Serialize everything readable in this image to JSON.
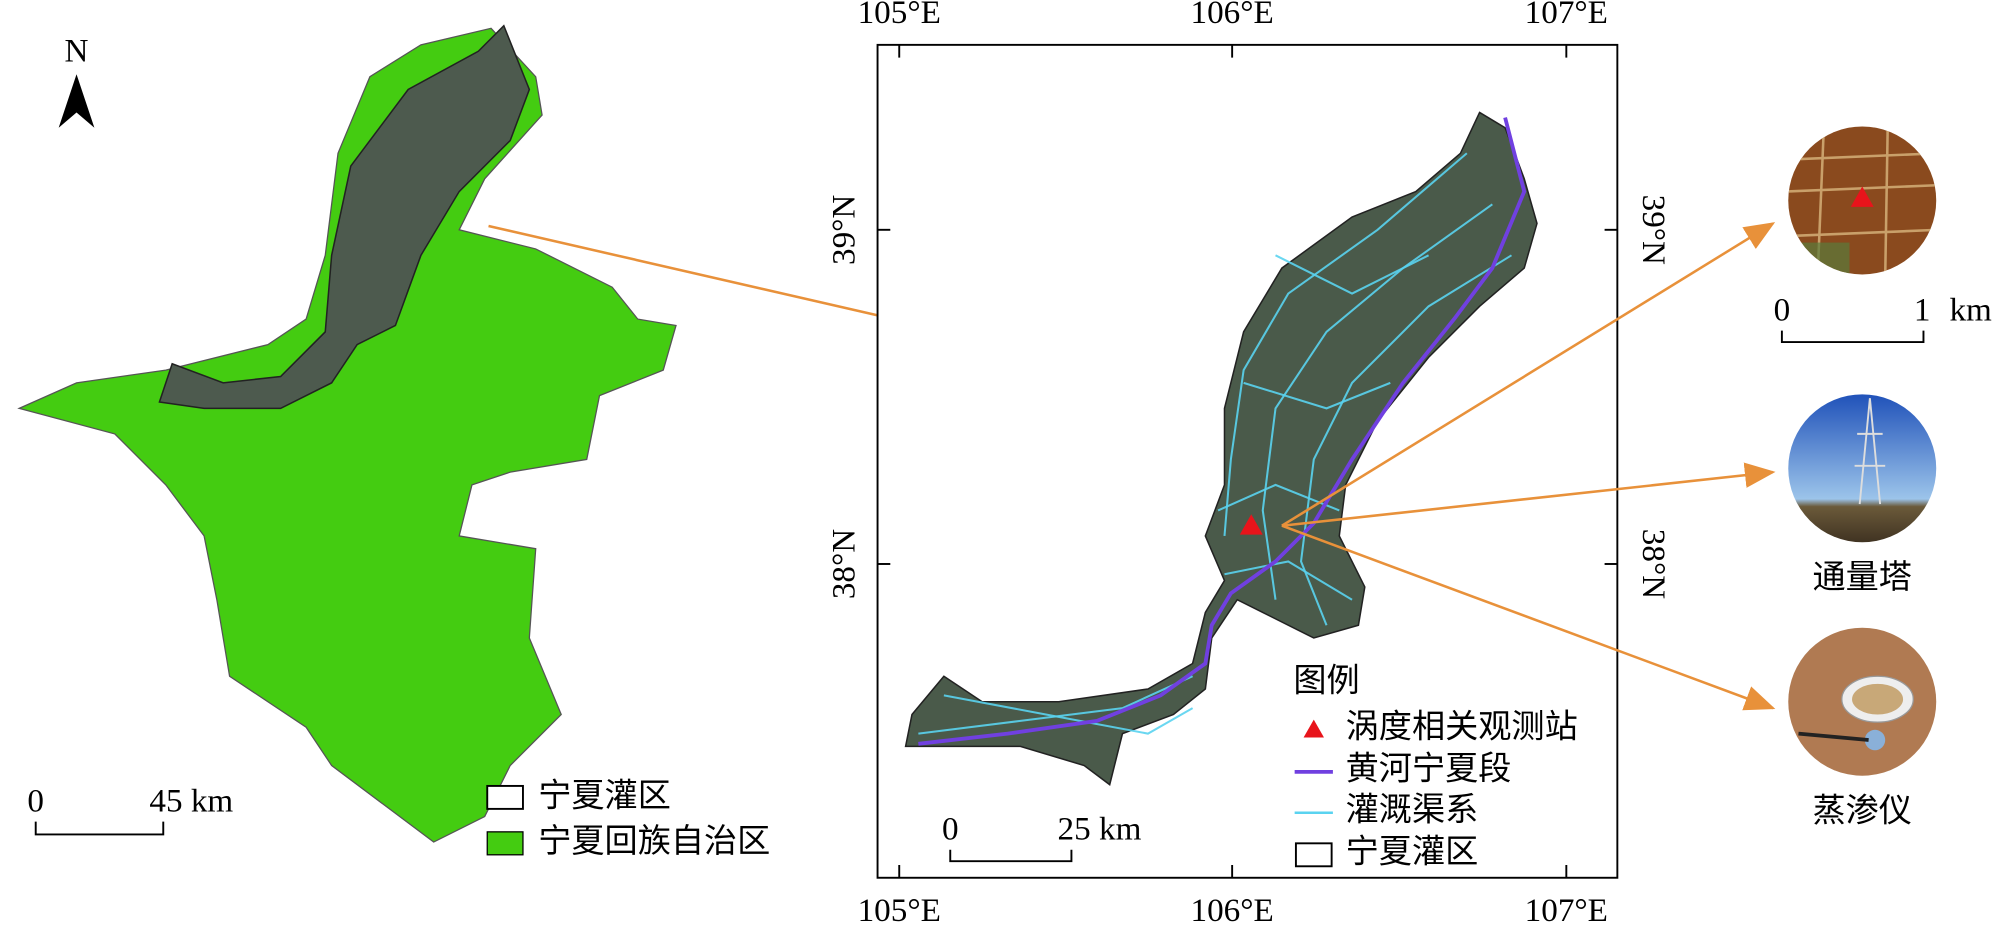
{
  "left_map": {
    "north": "N",
    "scale": {
      "start": "0",
      "end": "45 km"
    },
    "legend": [
      "宁夏灌区",
      "宁夏回族自治区"
    ]
  },
  "center_map": {
    "top_labels": [
      "105°E",
      "106°E",
      "107°E"
    ],
    "bottom_labels": [
      "105°E",
      "106°E",
      "107°E"
    ],
    "left_labels": [
      "39°N",
      "38°N"
    ],
    "right_labels": [
      "39°N",
      "38°N"
    ],
    "legend": {
      "title": "图例",
      "items": [
        "涡度相关观测站",
        "黄河宁夏段",
        "灌溉渠系",
        "宁夏灌区"
      ]
    },
    "scale": {
      "start": "0",
      "end": "25 km"
    }
  },
  "right_panel": {
    "scale": {
      "start": "0",
      "end": "1",
      "unit": "km"
    },
    "labels": [
      "通量塔",
      "蒸渗仪"
    ]
  }
}
